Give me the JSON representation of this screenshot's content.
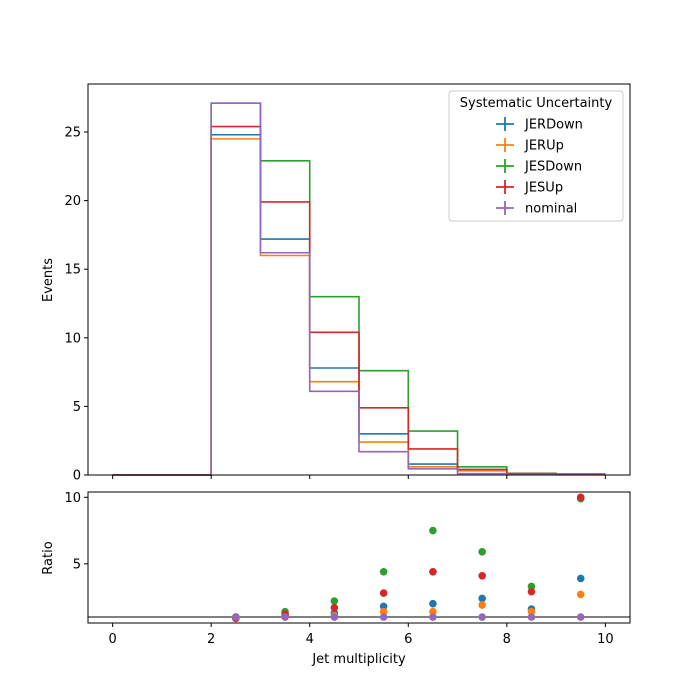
{
  "chart_data": {
    "type": "histogram-step",
    "bin_edges": [
      0,
      1,
      2,
      3,
      4,
      5,
      6,
      7,
      8,
      9,
      10
    ],
    "xlim": [
      -0.5,
      10.5
    ],
    "xlabel": "Jet multiplicity",
    "xticks": [
      0,
      2,
      4,
      6,
      8,
      10
    ],
    "legend": {
      "title": "Systematic Uncertainty",
      "placement": "top-right"
    },
    "series": [
      {
        "name": "JERDown",
        "color": "#1f77b4",
        "values": [
          0,
          0,
          24.8,
          17.2,
          7.8,
          3.0,
          0.8,
          0.4,
          0.08,
          0.04
        ]
      },
      {
        "name": "JERUp",
        "color": "#ff7f0e",
        "values": [
          0,
          0,
          24.5,
          16.0,
          6.8,
          2.4,
          0.6,
          0.3,
          0.07,
          0.03
        ]
      },
      {
        "name": "JESDown",
        "color": "#2ca02c",
        "values": [
          0,
          0,
          27.1,
          22.9,
          13.0,
          7.6,
          3.2,
          0.6,
          0.12,
          0.07
        ]
      },
      {
        "name": "JESUp",
        "color": "#d62728",
        "values": [
          0,
          0,
          25.4,
          19.9,
          10.4,
          4.9,
          1.9,
          0.4,
          0.11,
          0.06
        ]
      },
      {
        "name": "nominal",
        "color": "#9467bd",
        "values": [
          0,
          0,
          27.1,
          16.2,
          6.1,
          1.7,
          0.45,
          0.1,
          0.04,
          0.01
        ]
      }
    ],
    "main_panel": {
      "ylabel": "Events",
      "ylim": [
        0,
        28.5
      ],
      "yticks": [
        0,
        5,
        10,
        15,
        20,
        25
      ]
    },
    "ratio_panel": {
      "ylabel": "Ratio",
      "ylim": [
        0.55,
        10.4
      ],
      "yticks": [
        5,
        10
      ],
      "reference_line": 1,
      "x": [
        2.5,
        3.5,
        4.5,
        5.5,
        6.5,
        7.5,
        8.5,
        9.5
      ],
      "series": [
        {
          "name": "JERDown",
          "color": "#1f77b4",
          "values": [
            1.0,
            1.1,
            1.3,
            1.8,
            2.0,
            2.4,
            1.6,
            3.9
          ]
        },
        {
          "name": "JERUp",
          "color": "#ff7f0e",
          "values": [
            0.9,
            1.0,
            1.1,
            1.4,
            1.4,
            1.9,
            1.4,
            2.7
          ]
        },
        {
          "name": "JESDown",
          "color": "#2ca02c",
          "values": [
            1.0,
            1.4,
            2.2,
            4.4,
            7.5,
            5.9,
            3.3,
            9.9
          ]
        },
        {
          "name": "JESUp",
          "color": "#d62728",
          "values": [
            0.9,
            1.2,
            1.7,
            2.8,
            4.4,
            4.1,
            2.9,
            10.0
          ]
        },
        {
          "name": "nominal",
          "color": "#9467bd",
          "values": [
            1.0,
            1.0,
            1.0,
            1.0,
            1.0,
            1.0,
            1.0,
            1.0
          ]
        }
      ]
    }
  }
}
